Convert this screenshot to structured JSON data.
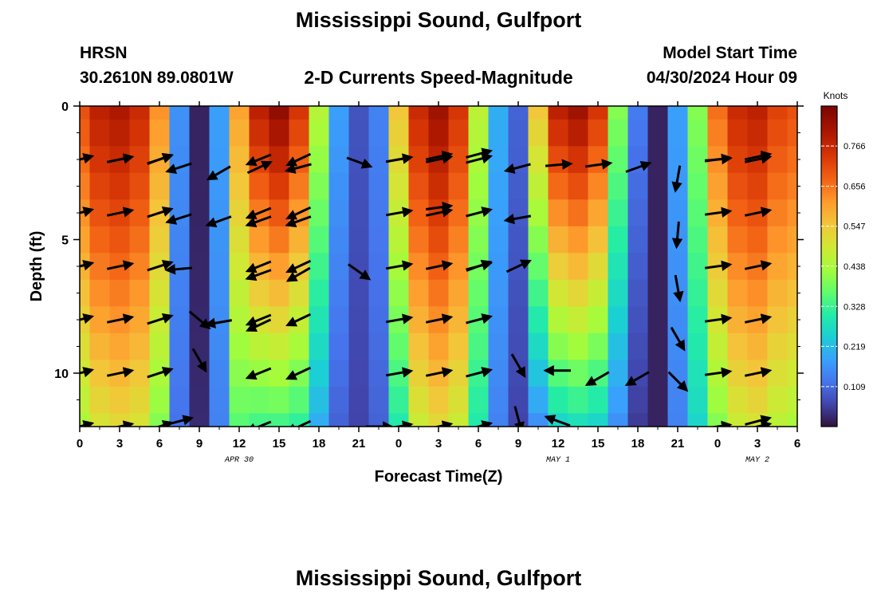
{
  "header": {
    "title": "Mississippi Sound, Gulfport",
    "station": "HRSN",
    "coords": "30.2610N  89.0801W",
    "subtitle": "2-D Currents Speed-Magnitude",
    "model_start_label": "Model Start Time",
    "model_start_value": "04/30/2024 Hour 09"
  },
  "footer": {
    "title": "Mississippi Sound, Gulfport"
  },
  "chart_data": {
    "type": "heatmap",
    "xlabel": "Forecast Time(Z)",
    "ylabel": "Depth (ft)",
    "x_tick_labels": [
      "0",
      "3",
      "6",
      "9",
      "12",
      "15",
      "18",
      "21",
      "0",
      "3",
      "6",
      "9",
      "12",
      "15",
      "18",
      "21",
      "0",
      "3",
      "6"
    ],
    "date_labels": [
      {
        "text": "APR 30",
        "hour": 12
      },
      {
        "text": "MAY 1",
        "hour": 36
      },
      {
        "text": "MAY 2",
        "hour": 51
      }
    ],
    "y_tick_labels": [
      "0",
      "5",
      "10"
    ],
    "y_tick_values": [
      0,
      5,
      10
    ],
    "xlim_hours": [
      0,
      54
    ],
    "ylim_depth_ft": [
      0,
      12
    ],
    "colorbar": {
      "label": "Knots",
      "ticks": [
        "0.766",
        "0.656",
        "0.547",
        "0.438",
        "0.328",
        "0.219",
        "0.109"
      ],
      "tick_values": [
        0.766,
        0.656,
        0.547,
        0.438,
        0.328,
        0.219,
        0.109
      ],
      "range": [
        0,
        0.875
      ]
    },
    "speed_grid": {
      "hours": [
        0,
        1.5,
        3,
        4.5,
        6,
        7.5,
        9,
        10.5,
        12,
        13.5,
        15,
        16.5,
        18,
        19.5,
        21,
        22.5,
        24,
        25.5,
        27,
        28.5,
        30,
        31.5,
        33,
        34.5,
        36,
        37.5,
        39,
        40.5,
        42,
        43.5,
        45,
        46.5,
        48,
        49.5,
        51,
        52.5,
        54
      ],
      "depths_ft": [
        0,
        1,
        2,
        3,
        4,
        5,
        6,
        7,
        8,
        9,
        10,
        11,
        12
      ],
      "profiles": {
        "surface": [
          0.7,
          0.78,
          0.8,
          0.76,
          0.62,
          0.16,
          0.02,
          0.18,
          0.6,
          0.78,
          0.84,
          0.74,
          0.45,
          0.18,
          0.08,
          0.14,
          0.55,
          0.76,
          0.82,
          0.74,
          0.46,
          0.2,
          0.1,
          0.55,
          0.78,
          0.82,
          0.74,
          0.4,
          0.13,
          0.02,
          0.18,
          0.4,
          0.66,
          0.76,
          0.78,
          0.72,
          0.7
        ],
        "bottom": [
          0.44,
          0.5,
          0.52,
          0.5,
          0.4,
          0.12,
          0.03,
          0.14,
          0.36,
          0.34,
          0.34,
          0.32,
          0.2,
          0.1,
          0.06,
          0.1,
          0.3,
          0.48,
          0.52,
          0.48,
          0.3,
          0.14,
          0.06,
          0.16,
          0.26,
          0.28,
          0.26,
          0.16,
          0.05,
          0.02,
          0.14,
          0.26,
          0.4,
          0.48,
          0.5,
          0.46,
          0.44
        ]
      }
    },
    "vectors": [
      {
        "hour": 0,
        "depth": 2,
        "angle": 15
      },
      {
        "hour": 3,
        "depth": 2,
        "angle": 12
      },
      {
        "hour": 6,
        "depth": 2,
        "angle": 20
      },
      {
        "hour": 7.5,
        "depth": 2.3,
        "angle": 198
      },
      {
        "hour": 10.5,
        "depth": 2.5,
        "angle": 210
      },
      {
        "hour": 13.5,
        "depth": 2.3,
        "angle": 25
      },
      {
        "hour": 16.5,
        "depth": 2.3,
        "angle": 195
      },
      {
        "hour": 21,
        "depth": 2.1,
        "angle": -20
      },
      {
        "hour": 24,
        "depth": 2.0,
        "angle": 10
      },
      {
        "hour": 27,
        "depth": 1.9,
        "angle": 12
      },
      {
        "hour": 30,
        "depth": 1.8,
        "angle": 15
      },
      {
        "hour": 33,
        "depth": 2.3,
        "angle": 195
      },
      {
        "hour": 36,
        "depth": 2.2,
        "angle": 5
      },
      {
        "hour": 39,
        "depth": 2.2,
        "angle": 8
      },
      {
        "hour": 42,
        "depth": 2.3,
        "angle": 20
      },
      {
        "hour": 45,
        "depth": 2.7,
        "angle": 260
      },
      {
        "hour": 48,
        "depth": 2.0,
        "angle": 5
      },
      {
        "hour": 51,
        "depth": 1.9,
        "angle": 12
      },
      {
        "hour": 7.5,
        "depth": 4.2,
        "angle": 198
      },
      {
        "hour": 10.5,
        "depth": 4.3,
        "angle": 200
      },
      {
        "hour": 13.5,
        "depth": 4.3,
        "angle": 200
      },
      {
        "hour": 16.5,
        "depth": 4.3,
        "angle": 200
      },
      {
        "hour": 27,
        "depth": 3.8,
        "angle": 8
      },
      {
        "hour": 33,
        "depth": 4.2,
        "angle": 190
      },
      {
        "hour": 45,
        "depth": 4.8,
        "angle": 265
      },
      {
        "hour": 0,
        "depth": 6.0,
        "angle": 15
      },
      {
        "hour": 7.5,
        "depth": 6.1,
        "angle": 185
      },
      {
        "hour": 13.5,
        "depth": 6.3,
        "angle": 200
      },
      {
        "hour": 16.5,
        "depth": 6.3,
        "angle": 210
      },
      {
        "hour": 21,
        "depth": 6.2,
        "angle": -35
      },
      {
        "hour": 30,
        "depth": 6.0,
        "angle": 20
      },
      {
        "hour": 33,
        "depth": 6.0,
        "angle": 25
      },
      {
        "hour": 45,
        "depth": 6.8,
        "angle": 280
      },
      {
        "hour": 9,
        "depth": 8.0,
        "angle": -40
      },
      {
        "hour": 10.5,
        "depth": 8.1,
        "angle": 190
      },
      {
        "hour": 13.5,
        "depth": 8.2,
        "angle": 205
      },
      {
        "hour": 45,
        "depth": 8.7,
        "angle": 300
      },
      {
        "hour": 9,
        "depth": 9.5,
        "angle": -60
      },
      {
        "hour": 33,
        "depth": 9.7,
        "angle": 300
      },
      {
        "hour": 36,
        "depth": 9.9,
        "angle": 180
      },
      {
        "hour": 39,
        "depth": 10.2,
        "angle": 210
      },
      {
        "hour": 42,
        "depth": 10.2,
        "angle": 210
      },
      {
        "hour": 45,
        "depth": 10.3,
        "angle": 315
      },
      {
        "hour": 0,
        "depth": 12.0,
        "angle": 15
      },
      {
        "hour": 7.5,
        "depth": 11.8,
        "angle": 15
      },
      {
        "hour": 22.5,
        "depth": 12.0,
        "angle": 0
      },
      {
        "hour": 33,
        "depth": 11.7,
        "angle": 285
      },
      {
        "hour": 36,
        "depth": 11.8,
        "angle": 160
      },
      {
        "hour": 51,
        "depth": 11.8,
        "angle": 15
      }
    ],
    "vector_pattern": {
      "depths": [
        2,
        4,
        6,
        8,
        10,
        12
      ],
      "columns": [
        {
          "hour": 0,
          "angle": 15
        },
        {
          "hour": 3,
          "angle": 12
        },
        {
          "hour": 6,
          "angle": 18
        },
        {
          "hour": 13.5,
          "angle": 202
        },
        {
          "hour": 16.5,
          "angle": 205
        },
        {
          "hour": 24,
          "angle": 10
        },
        {
          "hour": 27,
          "angle": 12
        },
        {
          "hour": 30,
          "angle": 15
        },
        {
          "hour": 48,
          "angle": 8
        },
        {
          "hour": 51,
          "angle": 12
        }
      ]
    }
  }
}
